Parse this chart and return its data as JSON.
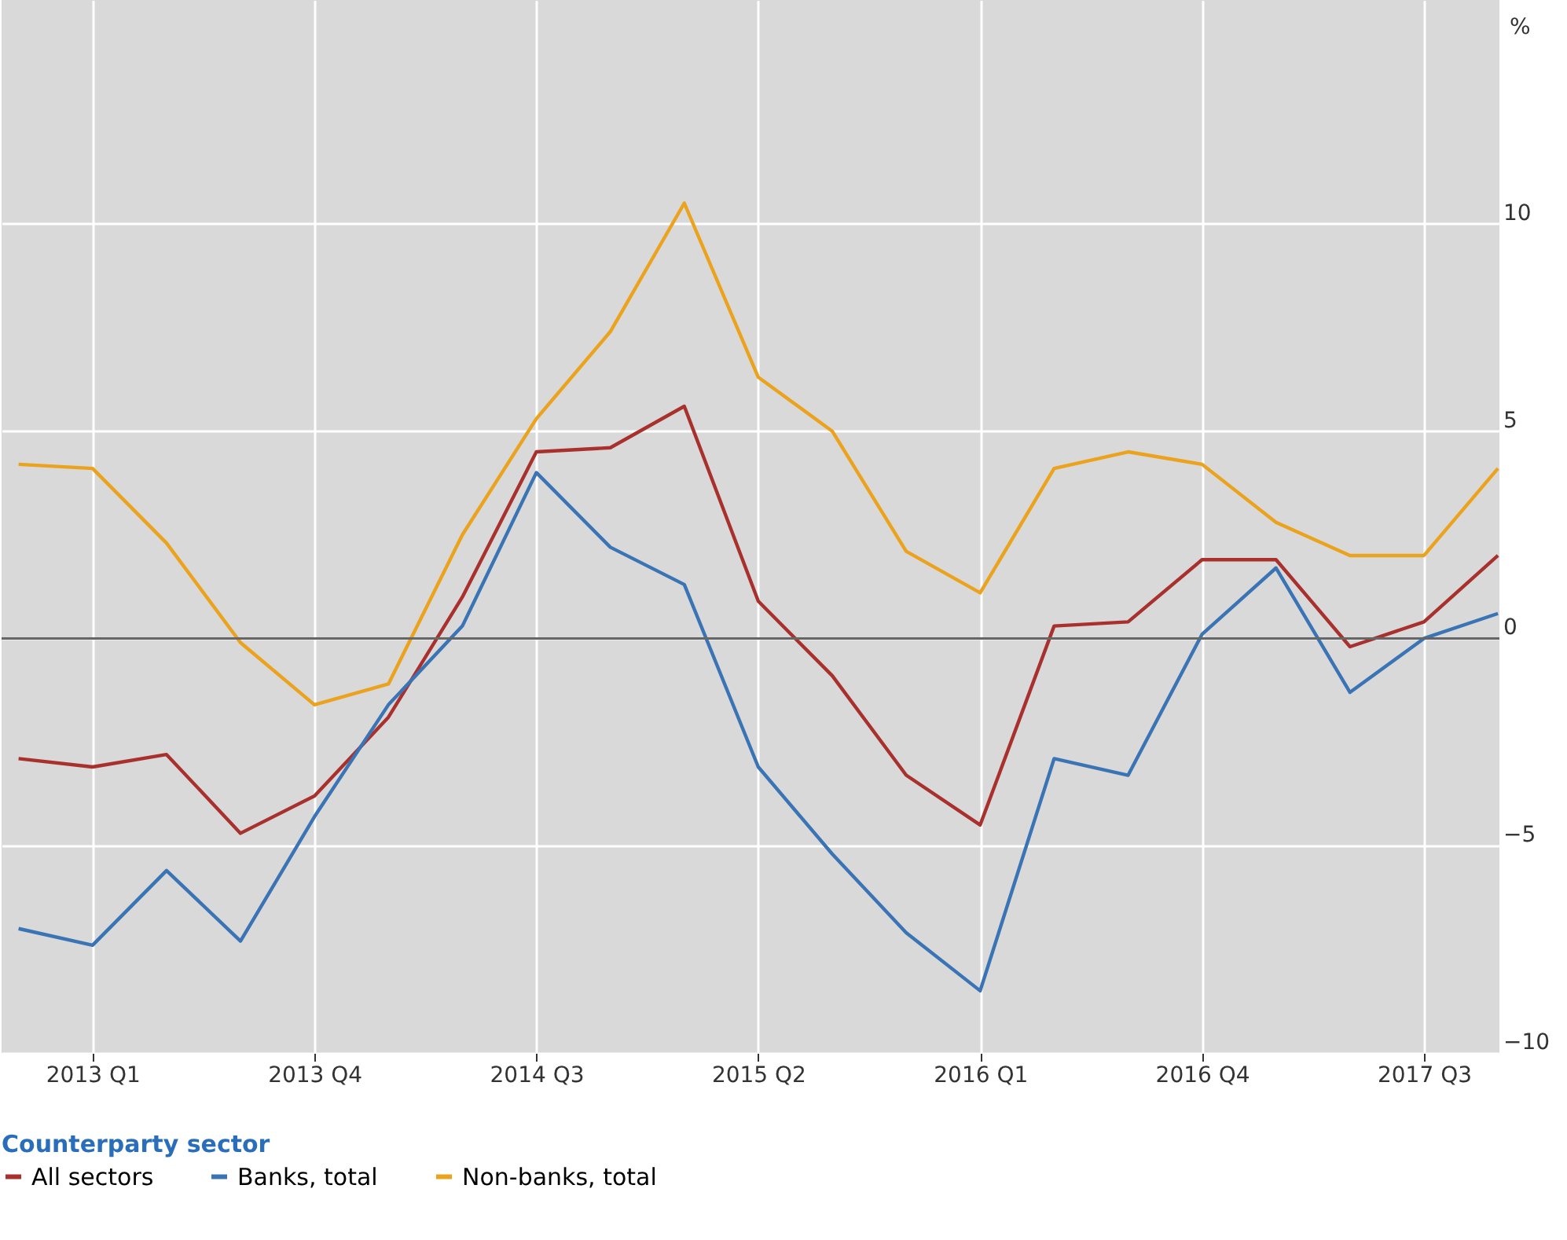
{
  "chart_data": {
    "type": "line",
    "categories": [
      null,
      "2013 Q1",
      null,
      null,
      "2013 Q4",
      null,
      null,
      "2014 Q3",
      null,
      null,
      "2015 Q2",
      null,
      null,
      "2016 Q1",
      null,
      null,
      "2016 Q4",
      null,
      null,
      "2017 Q3",
      null
    ],
    "ylabel": "%",
    "legend_title": "Counterparty sector",
    "ylim": [
      -10,
      15.4
    ],
    "yticks": [
      -10,
      -5,
      0,
      5,
      10
    ],
    "grid": true,
    "legend": "bottom",
    "line_style": "solid",
    "marker": "none",
    "ref_lines": [
      {
        "axis": "y",
        "value": 0,
        "color": "#666666"
      }
    ],
    "series": [
      {
        "name": "All sectors",
        "color": "#a8312e",
        "values": [
          -2.9,
          -3.1,
          -2.8,
          -4.7,
          -3.8,
          -1.9,
          1.0,
          4.5,
          4.6,
          5.6,
          0.9,
          -0.9,
          -3.3,
          -4.5,
          0.3,
          0.4,
          1.9,
          1.9,
          -0.2,
          0.4,
          2.0
        ]
      },
      {
        "name": "Banks, total",
        "color": "#3a74b5",
        "values": [
          -7.0,
          -7.4,
          -5.6,
          -7.3,
          -4.3,
          -1.6,
          0.3,
          4.0,
          2.2,
          1.3,
          -3.1,
          -5.2,
          -7.1,
          -8.5,
          -2.9,
          -3.3,
          0.1,
          1.7,
          -1.3,
          0.0,
          0.6
        ]
      },
      {
        "name": "Non-banks, total",
        "color": "#eba21d",
        "values": [
          4.2,
          4.1,
          2.3,
          -0.1,
          -1.6,
          -1.1,
          2.5,
          5.3,
          7.4,
          10.5,
          6.3,
          5.0,
          2.1,
          1.1,
          4.1,
          4.5,
          4.2,
          2.8,
          2.0,
          2.0,
          4.1
        ]
      }
    ]
  }
}
